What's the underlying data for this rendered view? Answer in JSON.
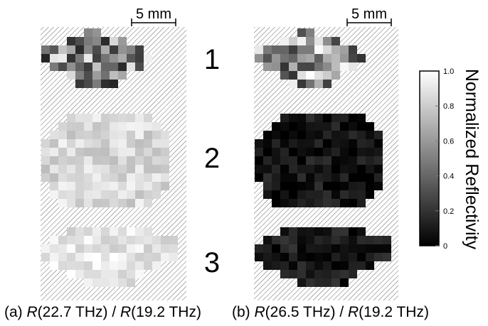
{
  "scale_bar_label": "5 mm",
  "sample_numbers": [
    "1",
    "2",
    "3"
  ],
  "colorbar": {
    "title": "Normalized Reflectivity",
    "ticks": [
      "1.0",
      "0.8",
      "0.6",
      "0.4",
      "0.2",
      "0"
    ]
  },
  "captions": [
    {
      "prefix": "(a) ",
      "r1": "R",
      "arg1": "(22.7 THz) / ",
      "r2": "R",
      "arg2": "(19.2 THz)"
    },
    {
      "prefix": "(b) ",
      "r1": "R",
      "arg1": "(26.5 THz) / ",
      "r2": "R",
      "arg2": "(19.2 THz)"
    }
  ],
  "panels": [
    {
      "id": "a",
      "samples": [
        {
          "tone": "mixed-dark",
          "mean": 0.45
        },
        {
          "tone": "light",
          "mean": 0.85
        },
        {
          "tone": "light",
          "mean": 0.9
        }
      ]
    },
    {
      "id": "b",
      "samples": [
        {
          "tone": "mixed-light",
          "mean": 0.6
        },
        {
          "tone": "dark",
          "mean": 0.08
        },
        {
          "tone": "dark",
          "mean": 0.1
        }
      ]
    }
  ]
}
